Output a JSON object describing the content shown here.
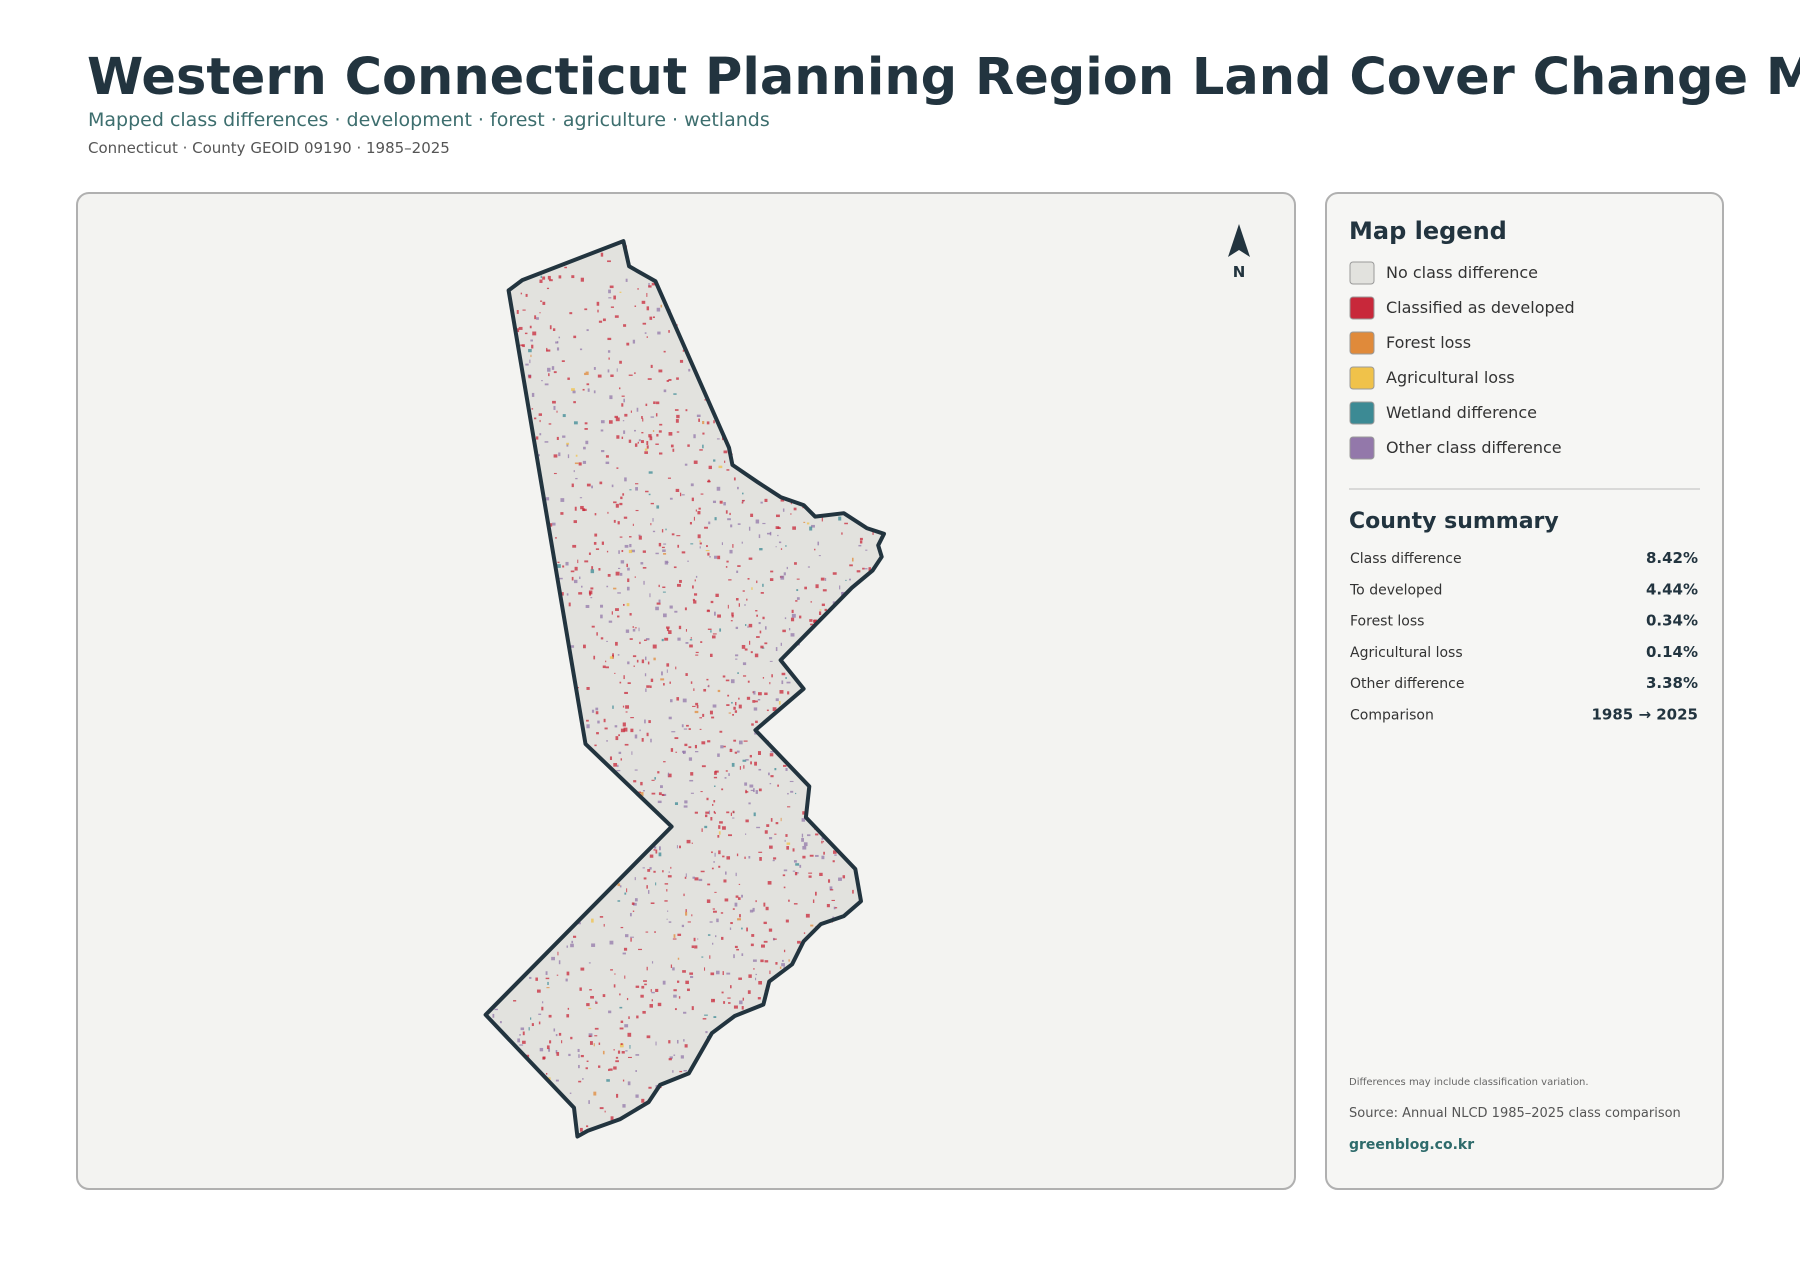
{
  "header": {
    "title": "Western Connecticut Planning Region Land Cover Change Map",
    "subtitle": "Mapped class differences · development · forest · agriculture · wetlands",
    "meta": "Connecticut · County GEOID 09190 · 1985–2025"
  },
  "map": {
    "north": "N"
  },
  "legend": {
    "title": "Map legend",
    "items": [
      {
        "label": "No class difference",
        "color": "#e2e2de"
      },
      {
        "label": "Classified as developed",
        "color": "#c8283a"
      },
      {
        "label": "Forest loss",
        "color": "#e08a3a"
      },
      {
        "label": "Agricultural loss",
        "color": "#f0c24a"
      },
      {
        "label": "Wetland difference",
        "color": "#3c8a94"
      },
      {
        "label": "Other class difference",
        "color": "#9378aa"
      }
    ]
  },
  "summary": {
    "title": "County summary",
    "rows": [
      [
        "Class difference",
        "8.42%"
      ],
      [
        "To developed",
        "4.44%"
      ],
      [
        "Forest loss",
        "0.34%"
      ],
      [
        "Agricultural loss",
        "0.14%"
      ],
      [
        "Other difference",
        "3.38%"
      ],
      [
        "Comparison",
        "1985 → 2025"
      ]
    ]
  },
  "footer": {
    "note": "Differences may include classification variation.",
    "source": "Source: Annual NLCD 1985–2025 class comparison",
    "credit": "greenblog.co.kr"
  }
}
